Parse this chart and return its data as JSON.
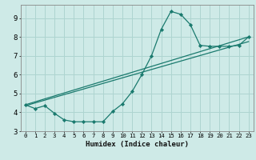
{
  "xlabel": "Humidex (Indice chaleur)",
  "bg_color": "#ceeae7",
  "grid_color": "#aed4d0",
  "line_color": "#1a7a6e",
  "xlim": [
    -0.5,
    23.5
  ],
  "ylim": [
    3.0,
    9.7
  ],
  "xticks": [
    0,
    1,
    2,
    3,
    4,
    5,
    6,
    7,
    8,
    9,
    10,
    11,
    12,
    13,
    14,
    15,
    16,
    17,
    18,
    19,
    20,
    21,
    22,
    23
  ],
  "yticks": [
    3,
    4,
    5,
    6,
    7,
    8,
    9
  ],
  "line1_x": [
    0,
    1,
    2,
    3,
    4,
    5,
    6,
    7,
    8,
    9,
    10,
    11,
    12,
    13,
    14,
    15,
    16,
    17,
    18,
    19,
    20,
    21,
    22,
    23
  ],
  "line1_y": [
    4.4,
    4.2,
    4.35,
    3.95,
    3.6,
    3.5,
    3.5,
    3.5,
    3.5,
    4.05,
    4.45,
    5.1,
    6.0,
    7.0,
    8.4,
    9.35,
    9.2,
    8.65,
    7.55,
    7.5,
    7.5,
    7.5,
    7.55,
    8.0
  ],
  "line2_x": [
    0,
    23
  ],
  "line2_y": [
    4.4,
    8.0
  ],
  "line3_x": [
    0,
    23
  ],
  "line3_y": [
    4.35,
    7.75
  ],
  "marker_size": 3.5
}
